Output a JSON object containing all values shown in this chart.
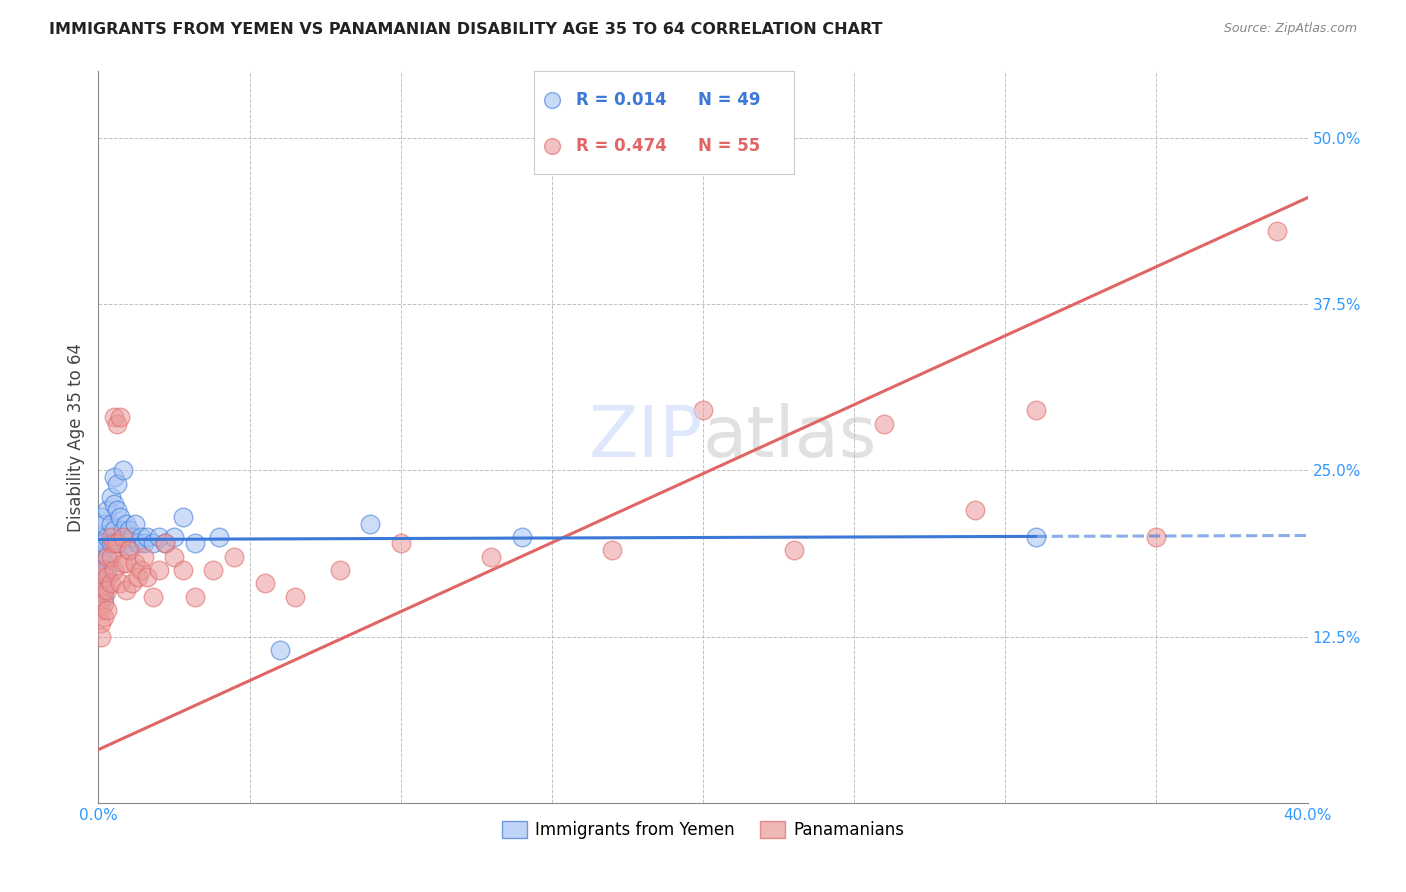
{
  "title": "IMMIGRANTS FROM YEMEN VS PANAMANIAN DISABILITY AGE 35 TO 64 CORRELATION CHART",
  "source": "Source: ZipAtlas.com",
  "ylabel": "Disability Age 35 to 64",
  "xlim": [
    0.0,
    0.4
  ],
  "ylim": [
    0.0,
    0.55
  ],
  "xticks": [
    0.0,
    0.05,
    0.1,
    0.15,
    0.2,
    0.25,
    0.3,
    0.35,
    0.4
  ],
  "xticklabels": [
    "0.0%",
    "",
    "",
    "",
    "",
    "",
    "",
    "",
    "40.0%"
  ],
  "yticks": [
    0.0,
    0.125,
    0.25,
    0.375,
    0.5
  ],
  "yticklabels": [
    "",
    "12.5%",
    "25.0%",
    "37.5%",
    "50.0%"
  ],
  "legend_r1": "R = 0.014",
  "legend_n1": "N = 49",
  "legend_r2": "R = 0.474",
  "legend_n2": "N = 55",
  "series1_color": "#a4c2f4",
  "series2_color": "#ea9999",
  "line1_color": "#3c78d8",
  "line2_color": "#e06666",
  "watermark_color": "#c9daf8",
  "yemen_x": [
    0.001,
    0.001,
    0.001,
    0.001,
    0.001,
    0.001,
    0.002,
    0.002,
    0.002,
    0.002,
    0.002,
    0.002,
    0.003,
    0.003,
    0.003,
    0.003,
    0.004,
    0.004,
    0.004,
    0.005,
    0.005,
    0.005,
    0.006,
    0.006,
    0.007,
    0.007,
    0.008,
    0.008,
    0.009,
    0.009,
    0.01,
    0.01,
    0.011,
    0.012,
    0.013,
    0.014,
    0.015,
    0.016,
    0.018,
    0.02,
    0.022,
    0.025,
    0.028,
    0.032,
    0.04,
    0.06,
    0.09,
    0.14,
    0.31
  ],
  "yemen_y": [
    0.2,
    0.215,
    0.195,
    0.185,
    0.175,
    0.165,
    0.21,
    0.195,
    0.18,
    0.17,
    0.16,
    0.155,
    0.22,
    0.2,
    0.185,
    0.175,
    0.23,
    0.21,
    0.195,
    0.245,
    0.225,
    0.205,
    0.24,
    0.22,
    0.195,
    0.215,
    0.205,
    0.25,
    0.21,
    0.195,
    0.205,
    0.19,
    0.2,
    0.21,
    0.195,
    0.2,
    0.195,
    0.2,
    0.195,
    0.2,
    0.195,
    0.2,
    0.215,
    0.195,
    0.2,
    0.115,
    0.21,
    0.2,
    0.2
  ],
  "panama_x": [
    0.001,
    0.001,
    0.001,
    0.001,
    0.001,
    0.002,
    0.002,
    0.002,
    0.002,
    0.003,
    0.003,
    0.003,
    0.003,
    0.004,
    0.004,
    0.004,
    0.005,
    0.005,
    0.005,
    0.006,
    0.006,
    0.007,
    0.007,
    0.008,
    0.008,
    0.009,
    0.009,
    0.01,
    0.011,
    0.012,
    0.013,
    0.014,
    0.015,
    0.016,
    0.018,
    0.02,
    0.022,
    0.025,
    0.028,
    0.032,
    0.038,
    0.045,
    0.055,
    0.065,
    0.08,
    0.1,
    0.13,
    0.17,
    0.2,
    0.23,
    0.26,
    0.29,
    0.31,
    0.35,
    0.39
  ],
  "panama_y": [
    0.17,
    0.155,
    0.145,
    0.135,
    0.125,
    0.175,
    0.16,
    0.15,
    0.14,
    0.185,
    0.17,
    0.16,
    0.145,
    0.2,
    0.185,
    0.165,
    0.29,
    0.195,
    0.175,
    0.285,
    0.195,
    0.29,
    0.165,
    0.2,
    0.18,
    0.18,
    0.16,
    0.19,
    0.165,
    0.18,
    0.17,
    0.175,
    0.185,
    0.17,
    0.155,
    0.175,
    0.195,
    0.185,
    0.175,
    0.155,
    0.175,
    0.185,
    0.165,
    0.155,
    0.175,
    0.195,
    0.185,
    0.19,
    0.295,
    0.19,
    0.285,
    0.22,
    0.295,
    0.2,
    0.43
  ],
  "yemen_line_y0": 0.198,
  "yemen_line_y1": 0.201,
  "yemen_line_x_solid_end": 0.31,
  "panama_line_y0": 0.04,
  "panama_line_y1": 0.455
}
